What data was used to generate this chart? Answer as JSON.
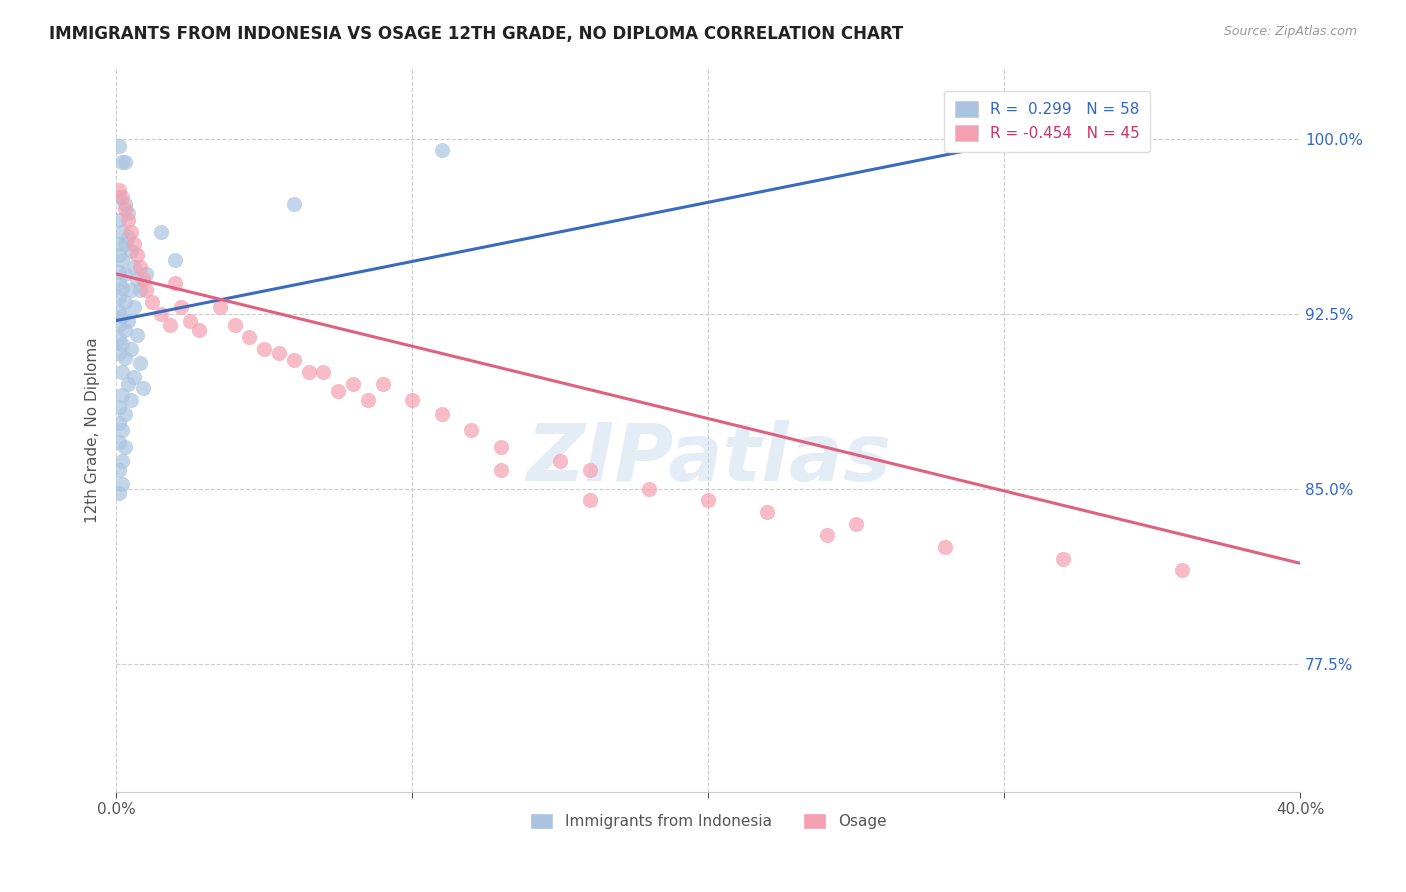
{
  "title": "IMMIGRANTS FROM INDONESIA VS OSAGE 12TH GRADE, NO DIPLOMA CORRELATION CHART",
  "source": "Source: ZipAtlas.com",
  "ylabel": "12th Grade, No Diploma",
  "ytick_labels": [
    "77.5%",
    "85.0%",
    "92.5%",
    "100.0%"
  ],
  "ytick_values": [
    0.775,
    0.85,
    0.925,
    1.0
  ],
  "xlim": [
    0.0,
    0.4
  ],
  "ylim": [
    0.72,
    1.03
  ],
  "blue_color": "#aac4e0",
  "pink_color": "#f4a0b0",
  "blue_line_color": "#3a6bbf",
  "pink_line_color": "#e06080",
  "watermark": "ZIPatlas",
  "blue_line": [
    [
      0.0,
      0.922
    ],
    [
      0.3,
      0.998
    ]
  ],
  "pink_line": [
    [
      0.0,
      0.942
    ],
    [
      0.4,
      0.818
    ]
  ],
  "indonesia_points": [
    [
      0.001,
      0.997
    ],
    [
      0.002,
      0.99
    ],
    [
      0.003,
      0.99
    ],
    [
      0.001,
      0.975
    ],
    [
      0.003,
      0.972
    ],
    [
      0.004,
      0.968
    ],
    [
      0.001,
      0.965
    ],
    [
      0.002,
      0.96
    ],
    [
      0.004,
      0.958
    ],
    [
      0.001,
      0.955
    ],
    [
      0.003,
      0.955
    ],
    [
      0.005,
      0.952
    ],
    [
      0.001,
      0.95
    ],
    [
      0.002,
      0.948
    ],
    [
      0.006,
      0.945
    ],
    [
      0.001,
      0.943
    ],
    [
      0.003,
      0.942
    ],
    [
      0.007,
      0.94
    ],
    [
      0.001,
      0.938
    ],
    [
      0.002,
      0.936
    ],
    [
      0.005,
      0.935
    ],
    [
      0.001,
      0.932
    ],
    [
      0.003,
      0.93
    ],
    [
      0.006,
      0.928
    ],
    [
      0.001,
      0.926
    ],
    [
      0.002,
      0.924
    ],
    [
      0.004,
      0.922
    ],
    [
      0.001,
      0.92
    ],
    [
      0.003,
      0.918
    ],
    [
      0.007,
      0.916
    ],
    [
      0.001,
      0.914
    ],
    [
      0.002,
      0.912
    ],
    [
      0.005,
      0.91
    ],
    [
      0.001,
      0.908
    ],
    [
      0.003,
      0.906
    ],
    [
      0.008,
      0.904
    ],
    [
      0.002,
      0.9
    ],
    [
      0.006,
      0.898
    ],
    [
      0.004,
      0.895
    ],
    [
      0.009,
      0.893
    ],
    [
      0.002,
      0.89
    ],
    [
      0.005,
      0.888
    ],
    [
      0.001,
      0.885
    ],
    [
      0.003,
      0.882
    ],
    [
      0.001,
      0.878
    ],
    [
      0.002,
      0.875
    ],
    [
      0.001,
      0.87
    ],
    [
      0.003,
      0.868
    ],
    [
      0.002,
      0.862
    ],
    [
      0.001,
      0.858
    ],
    [
      0.002,
      0.852
    ],
    [
      0.001,
      0.848
    ],
    [
      0.11,
      0.995
    ],
    [
      0.06,
      0.972
    ],
    [
      0.015,
      0.96
    ],
    [
      0.02,
      0.948
    ],
    [
      0.01,
      0.942
    ],
    [
      0.008,
      0.935
    ]
  ],
  "osage_points": [
    [
      0.001,
      0.978
    ],
    [
      0.002,
      0.975
    ],
    [
      0.003,
      0.97
    ],
    [
      0.004,
      0.965
    ],
    [
      0.005,
      0.96
    ],
    [
      0.006,
      0.955
    ],
    [
      0.007,
      0.95
    ],
    [
      0.008,
      0.945
    ],
    [
      0.009,
      0.94
    ],
    [
      0.01,
      0.935
    ],
    [
      0.012,
      0.93
    ],
    [
      0.015,
      0.925
    ],
    [
      0.018,
      0.92
    ],
    [
      0.02,
      0.938
    ],
    [
      0.022,
      0.928
    ],
    [
      0.025,
      0.922
    ],
    [
      0.028,
      0.918
    ],
    [
      0.035,
      0.928
    ],
    [
      0.04,
      0.92
    ],
    [
      0.05,
      0.91
    ],
    [
      0.06,
      0.905
    ],
    [
      0.07,
      0.9
    ],
    [
      0.08,
      0.895
    ],
    [
      0.1,
      0.888
    ],
    [
      0.11,
      0.882
    ],
    [
      0.12,
      0.875
    ],
    [
      0.13,
      0.868
    ],
    [
      0.15,
      0.862
    ],
    [
      0.16,
      0.858
    ],
    [
      0.18,
      0.85
    ],
    [
      0.2,
      0.845
    ],
    [
      0.22,
      0.84
    ],
    [
      0.25,
      0.835
    ],
    [
      0.13,
      0.858
    ],
    [
      0.16,
      0.845
    ],
    [
      0.09,
      0.895
    ],
    [
      0.045,
      0.915
    ],
    [
      0.055,
      0.908
    ],
    [
      0.065,
      0.9
    ],
    [
      0.075,
      0.892
    ],
    [
      0.085,
      0.888
    ],
    [
      0.32,
      0.82
    ],
    [
      0.36,
      0.815
    ],
    [
      0.28,
      0.825
    ],
    [
      0.24,
      0.83
    ]
  ]
}
